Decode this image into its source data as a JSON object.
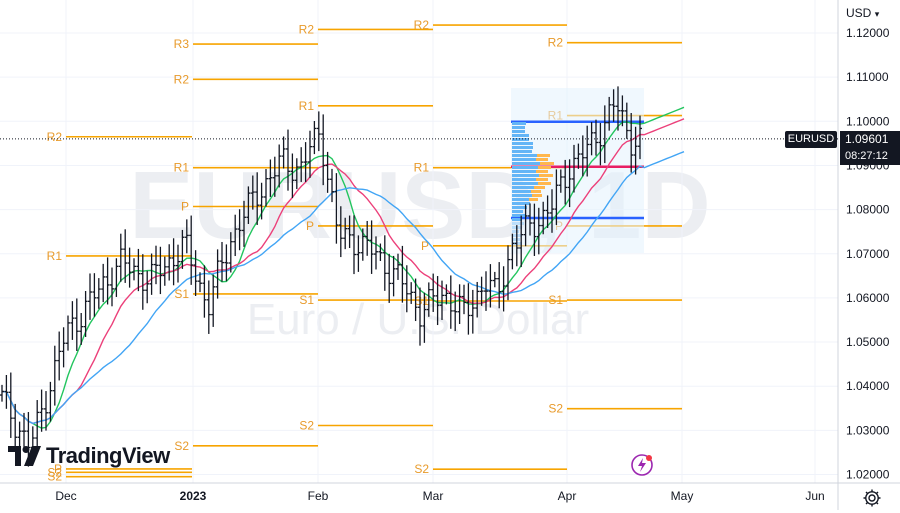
{
  "header": {
    "currency_label": "USD",
    "dropdown_icon": "chevron-down-icon"
  },
  "brand": {
    "name": "TradingView",
    "logo_icon": "tradingview-logo-icon"
  },
  "watermark": {
    "symbol": "EURUSD, 1D",
    "description": "Euro / U.S. Dollar"
  },
  "price_tag": {
    "symbol": "EURUSD",
    "price": "1.09601",
    "countdown": "08:27:12"
  },
  "icons": {
    "settings": "gear-icon",
    "alerts": "lightning-icon"
  },
  "colors": {
    "bars": "#131722",
    "pivot": "#f7a400",
    "pivot_label": "#e89b2c",
    "ma_green": "#22c55e",
    "ma_red": "#ec407a",
    "ma_blue": "#42a5f5",
    "vp_blue": "#2962ff",
    "vp_red": "#e91e63",
    "vp_orange": "#ffb74d"
  },
  "chart_data": {
    "type": "ohlc",
    "symbol": "EURUSD",
    "interval": "1D",
    "x_labels": [
      "Dec",
      "2023",
      "Feb",
      "Mar",
      "Apr",
      "May",
      "Jun"
    ],
    "y_ticks": [
      "1.12000",
      "1.11000",
      "1.10000",
      "1.09000",
      "1.08000",
      "1.07000",
      "1.06000",
      "1.05000",
      "1.04000",
      "1.03000",
      "1.02000"
    ],
    "ylim": [
      1.0195,
      1.1275
    ],
    "last_price": 1.09601,
    "pivot_levels": [
      {
        "labels": [
          "S2",
          "P"
        ],
        "values": [
          1.0195,
          1.02125
        ]
      },
      {
        "labels": [
          "R2",
          "R1",
          "S2"
        ],
        "values": [
          1.0965,
          1.0695,
          1.0205
        ]
      },
      {
        "labels": [
          "R3",
          "R2",
          "R1",
          "P",
          "S1",
          "S2"
        ],
        "values": [
          1.1175,
          1.1095,
          1.0895,
          1.0807,
          1.0609,
          1.0265
        ]
      },
      {
        "labels": [
          "R2",
          "R1",
          "P",
          "S1",
          "S2"
        ],
        "values": [
          1.1208,
          1.1035,
          1.0763,
          1.0595,
          1.0311
        ]
      },
      {
        "labels": [
          "R2",
          "R1",
          "P",
          "S1",
          "S2"
        ],
        "values": [
          1.1218,
          1.0895,
          1.0718,
          1.0593,
          1.0212
        ]
      },
      {
        "labels": [
          "R2",
          "R1",
          "P",
          "S1",
          "S2"
        ],
        "values": [
          1.1178,
          1.1013,
          1.0763,
          1.0595,
          1.0349
        ]
      }
    ],
    "volume_profile": {
      "value_area_high": 1.0999,
      "poc": 1.0897,
      "value_area_low": 1.0781
    },
    "moving_averages": [
      "green",
      "red",
      "blue"
    ]
  }
}
